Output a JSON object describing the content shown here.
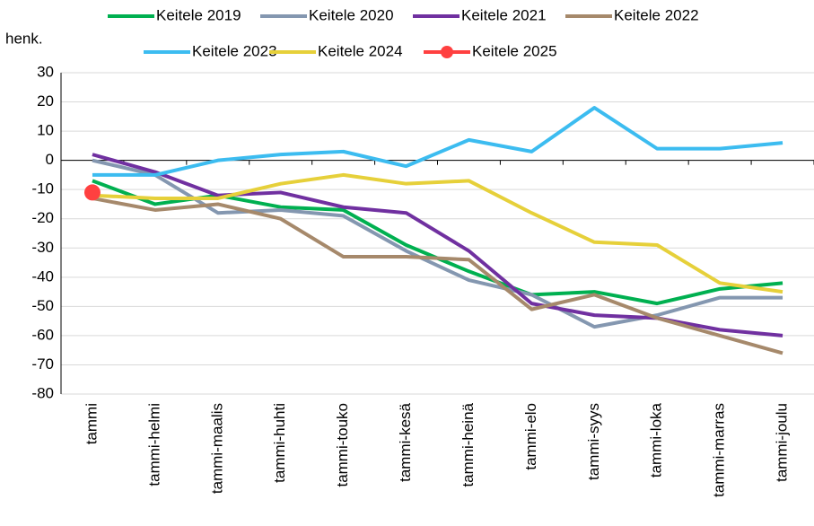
{
  "chart_data": {
    "type": "line",
    "ylabel": "henk.",
    "categories": [
      "tammi",
      "tammi-helmi",
      "tammi-maalis",
      "tammi-huhti",
      "tammi-touko",
      "tammi-kesä",
      "tammi-heinä",
      "tammi-elo",
      "tammi-syys",
      "tammi-loka",
      "tammi-marras",
      "tammi-joulu"
    ],
    "ylim": [
      -80,
      30
    ],
    "yticks": [
      -80,
      -70,
      -60,
      -50,
      -40,
      -30,
      -20,
      -10,
      0,
      10,
      20,
      30
    ],
    "grid": true,
    "series": [
      {
        "name": "Keitele 2019",
        "color": "#00b050",
        "values": [
          -7,
          -15,
          -12,
          -16,
          -17,
          -29,
          -38,
          -46,
          -45,
          -49,
          -44,
          -42
        ]
      },
      {
        "name": "Keitele 2020",
        "color": "#8497b0",
        "values": [
          0,
          -5,
          -18,
          -17,
          -19,
          -31,
          -41,
          -46,
          -57,
          -53,
          -47,
          -47
        ]
      },
      {
        "name": "Keitele 2021",
        "color": "#7030a0",
        "values": [
          2,
          -4,
          -12,
          -11,
          -16,
          -18,
          -31,
          -49,
          -53,
          -54,
          -58,
          -60
        ]
      },
      {
        "name": "Keitele 2022",
        "color": "#a6896b",
        "values": [
          -13,
          -17,
          -15,
          -20,
          -33,
          -33,
          -34,
          -51,
          -46,
          -54,
          -60,
          -66
        ]
      },
      {
        "name": "Keitele 2023",
        "color": "#3cbcf0",
        "values": [
          -5,
          -5,
          0,
          2,
          3,
          -2,
          7,
          3,
          18,
          4,
          4,
          6
        ]
      },
      {
        "name": "Keitele 2024",
        "color": "#e6d03a",
        "values": [
          -12,
          -13,
          -13,
          -8,
          -5,
          -8,
          -7,
          -18,
          -28,
          -29,
          -42,
          -45
        ]
      },
      {
        "name": "Keitele 2025",
        "color": "#ff4040",
        "marker": "circle",
        "values": [
          -11,
          null,
          null,
          null,
          null,
          null,
          null,
          null,
          null,
          null,
          null,
          null
        ]
      }
    ]
  }
}
